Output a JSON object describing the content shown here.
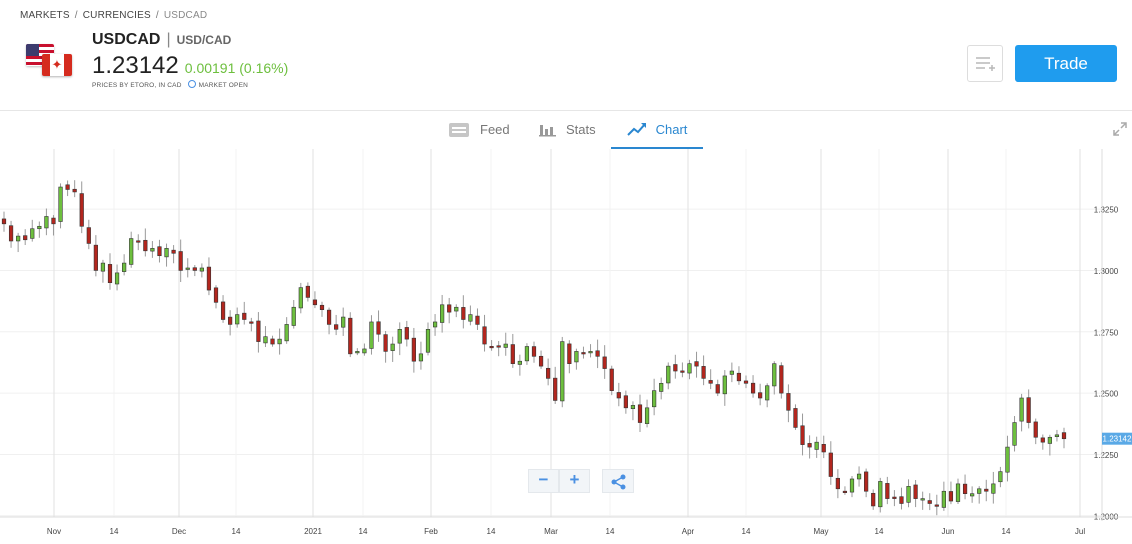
{
  "breadcrumb": {
    "items": [
      "MARKETS",
      "CURRENCIES",
      "USDCAD"
    ]
  },
  "instrument": {
    "symbol": "USDCAD",
    "pair": "USD/CAD",
    "price": "1.23142",
    "change": "0.00191 (0.16%)",
    "price_source": "PRICES BY ETORO, IN CAD",
    "market_status": "MARKET OPEN",
    "change_color": "#6dbf3e"
  },
  "actions": {
    "watchlist_icon": "add-to-list-icon",
    "trade_label": "Trade"
  },
  "tabs": [
    {
      "label": "Feed",
      "icon": "feed-icon",
      "active": false
    },
    {
      "label": "Stats",
      "icon": "stats-icon",
      "active": false
    },
    {
      "label": "Chart",
      "icon": "chart-icon",
      "active": true
    }
  ],
  "colors": {
    "accent": "#2a87d0",
    "trade_button": "#1f9cee",
    "candle_up": "#6dbf3e",
    "candle_down": "#b3261e",
    "current_price_tag": "#5aa9e6"
  },
  "chart_data": {
    "type": "candlestick",
    "title": "",
    "xlabel": "",
    "ylabel": "",
    "ylim": [
      1.1995,
      1.3495
    ],
    "y_ticks": [
      "1.3250",
      "1.3000",
      "1.2750",
      "1.2500",
      "1.2250",
      "1.2000"
    ],
    "x_ticks": [
      "Nov",
      "14",
      "Dec",
      "14",
      "2021",
      "14",
      "Feb",
      "14",
      "Mar",
      "14",
      "Apr",
      "14",
      "May",
      "14",
      "Jun",
      "14",
      "Jul"
    ],
    "current_price": "1.23142",
    "grid": true,
    "candles_close": [
      1.319,
      1.312,
      1.314,
      1.3125,
      1.317,
      1.318,
      1.322,
      1.319,
      1.334,
      1.333,
      1.332,
      1.318,
      1.311,
      1.3,
      1.303,
      1.295,
      1.299,
      1.303,
      1.313,
      1.312,
      1.308,
      1.309,
      1.306,
      1.309,
      1.307,
      1.3,
      1.301,
      1.3,
      1.301,
      1.292,
      1.287,
      1.28,
      1.278,
      1.282,
      1.28,
      1.279,
      1.271,
      1.273,
      1.27,
      1.272,
      1.278,
      1.285,
      1.293,
      1.289,
      1.286,
      1.284,
      1.278,
      1.276,
      1.281,
      1.266,
      1.267,
      1.268,
      1.279,
      1.274,
      1.267,
      1.27,
      1.276,
      1.272,
      1.263,
      1.266,
      1.276,
      1.279,
      1.286,
      1.283,
      1.285,
      1.28,
      1.282,
      1.278,
      1.27,
      1.269,
      1.269,
      1.27,
      1.262,
      1.263,
      1.269,
      1.265,
      1.261,
      1.256,
      1.247,
      1.271,
      1.262,
      1.267,
      1.266,
      1.267,
      1.265,
      1.26,
      1.251,
      1.248,
      1.244,
      1.245,
      1.238,
      1.244,
      1.251,
      1.254,
      1.261,
      1.259,
      1.259,
      1.262,
      1.261,
      1.256,
      1.254,
      1.25,
      1.257,
      1.259,
      1.255,
      1.254,
      1.25,
      1.248,
      1.253,
      1.262,
      1.25,
      1.243,
      1.236,
      1.229,
      1.228,
      1.23,
      1.226,
      1.216,
      1.211,
      1.21,
      1.215,
      1.217,
      1.21,
      1.204,
      1.214,
      1.207,
      1.207,
      1.205,
      1.212,
      1.207,
      1.207,
      1.205,
      1.204,
      1.21,
      1.206,
      1.213,
      1.209,
      1.209,
      1.211,
      1.21,
      1.213,
      1.218,
      1.228,
      1.238,
      1.248,
      1.238,
      1.232,
      1.23,
      1.232,
      1.233,
      1.2314
    ]
  }
}
